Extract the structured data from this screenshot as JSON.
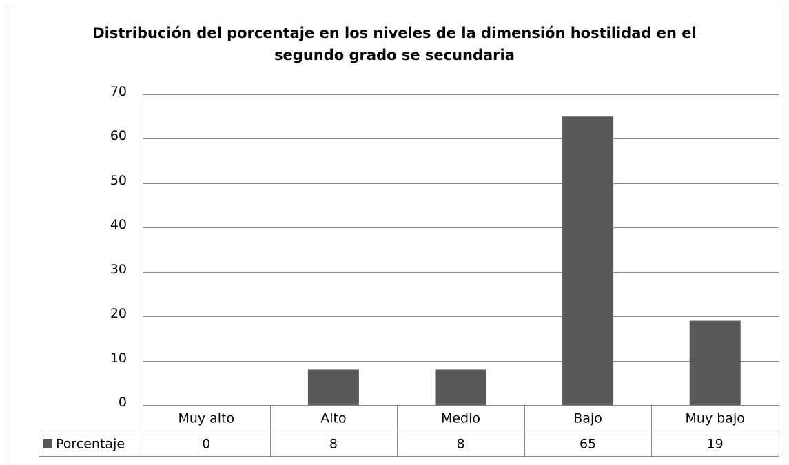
{
  "chart_data": {
    "type": "bar",
    "title": "Distribución del porcentaje en los niveles de la dimensión hostilidad en el segundo grado se secundaria",
    "categories": [
      "Muy alto",
      "Alto",
      "Medio",
      "Bajo",
      "Muy bajo"
    ],
    "series": [
      {
        "name": "Porcentaje",
        "color": "#595959",
        "values": [
          0,
          8,
          8,
          65,
          19
        ]
      }
    ],
    "ylim": [
      0,
      70
    ],
    "yticks": [
      0,
      10,
      20,
      30,
      40,
      50,
      60,
      70
    ],
    "grid": true,
    "data_table": true
  }
}
